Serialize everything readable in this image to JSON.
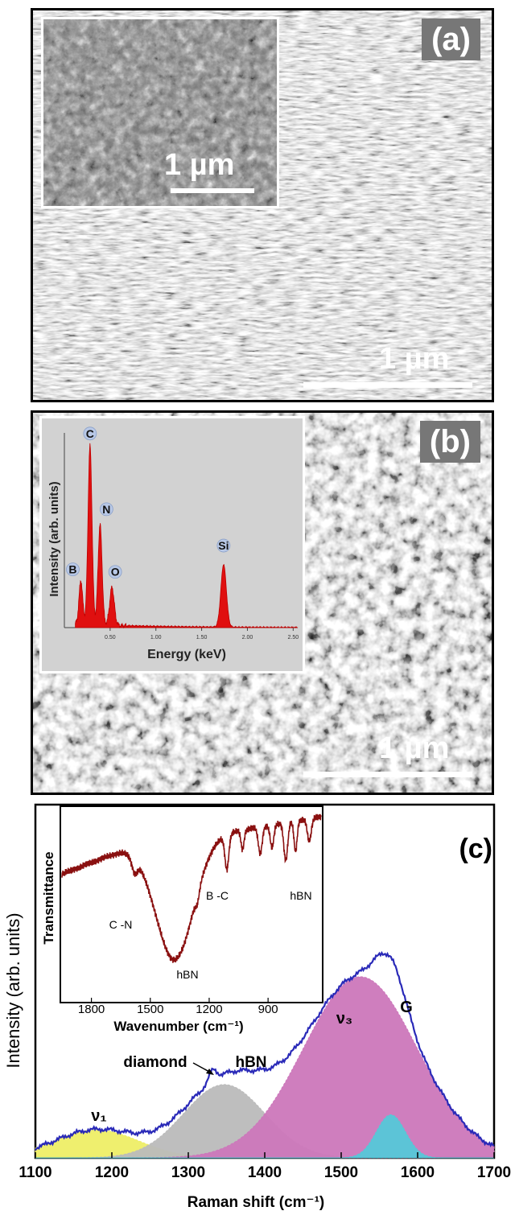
{
  "panel_a": {
    "label": "(a)",
    "scale_main": "1 µm",
    "scale_inset": "1 µm"
  },
  "panel_b": {
    "label": "(b)",
    "scale_main": "1 µm",
    "inset_chart": {
      "type": "line",
      "xlabel": "Energy (keV)",
      "ylabel": "Intensity (arb. units)",
      "xticks": [
        "0.50",
        "1.00",
        "1.50",
        "2.00",
        "2.50"
      ],
      "xlim": [
        0,
        2.55
      ],
      "peaks": [
        {
          "label": "C",
          "energy": 0.28,
          "height": 0.94
        },
        {
          "label": "B",
          "energy": 0.18,
          "height": 0.23
        },
        {
          "label": "N",
          "energy": 0.39,
          "height": 0.53
        },
        {
          "label": "O",
          "energy": 0.52,
          "height": 0.2
        },
        {
          "label": "Si",
          "energy": 1.74,
          "height": 0.33
        }
      ],
      "fill_color": "#e01010"
    }
  },
  "panel_c": {
    "label": "(c)",
    "chart_data": {
      "type": "line",
      "xlabel": "Raman shift (cm⁻¹)",
      "ylabel": "Intensity (arb. units)",
      "xlim": [
        1100,
        1700
      ],
      "xticks": [
        1100,
        1200,
        1300,
        1400,
        1500,
        1600,
        1700
      ],
      "peak_labels": [
        "ν₁",
        "diamond",
        "hBN",
        "ν₃",
        "G"
      ],
      "components": [
        {
          "name": "ν₁",
          "center": 1180,
          "fwhm": 130,
          "height": 0.13,
          "color": "#eeee66"
        },
        {
          "name": "hBN",
          "center": 1347,
          "fwhm": 125,
          "height": 0.34,
          "color": "#bbbbbb"
        },
        {
          "name": "ν₃",
          "center": 1525,
          "fwhm": 175,
          "height": 0.84,
          "color": "#cc77bb"
        },
        {
          "name": "G",
          "center": 1565,
          "fwhm": 45,
          "height": 0.2,
          "color": "#55c8d8"
        }
      ],
      "spectrum_color": "#2a2ab8"
    },
    "inset_chart": {
      "type": "line",
      "xlabel": "Wavenumber (cm⁻¹)",
      "ylabel": "Transmittance",
      "xlim": [
        1950,
        630
      ],
      "xticks": [
        1800,
        1500,
        1200,
        900
      ],
      "annotations": [
        "C -N",
        "B -C",
        "hBN",
        "hBN"
      ],
      "line_color": "#8a1010"
    }
  }
}
